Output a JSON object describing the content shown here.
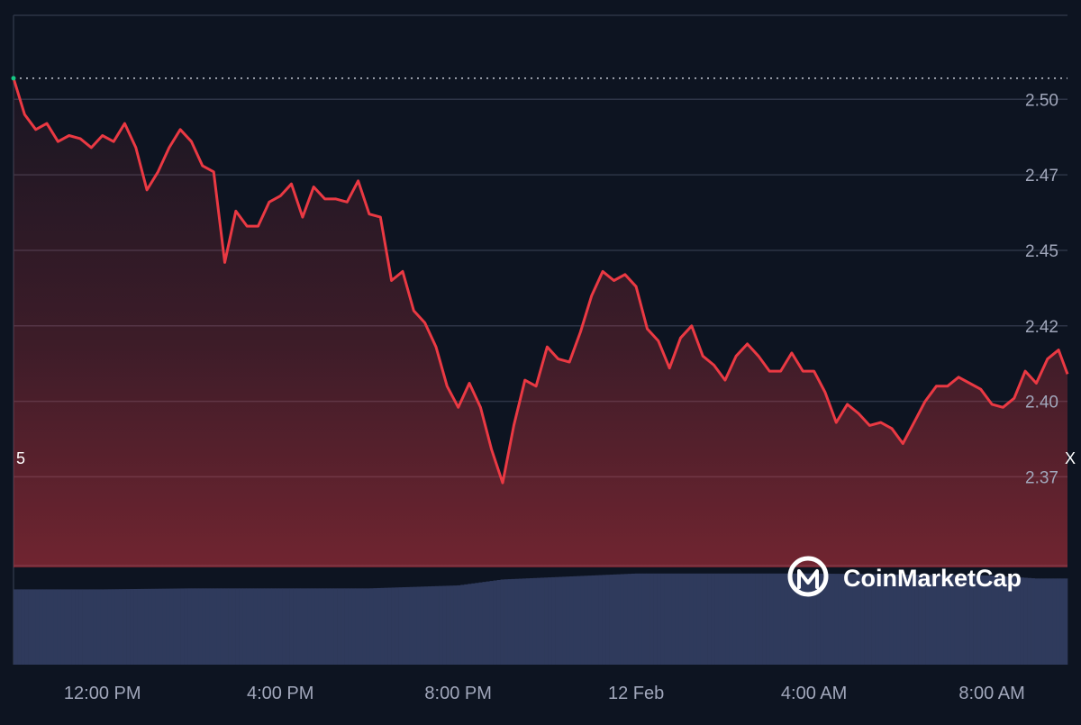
{
  "chart_data": {
    "type": "area",
    "title": "",
    "xlabel": "",
    "ylabel": "",
    "ylim": [
      2.345,
      2.515
    ],
    "y_ticks": [
      "2.50",
      "2.47",
      "2.45",
      "2.42",
      "2.40",
      "2.37"
    ],
    "y_tick_values": [
      2.5,
      2.475,
      2.45,
      2.425,
      2.4,
      2.375
    ],
    "x_ticks": [
      "12:00 PM",
      "4:00 PM",
      "8:00 PM",
      "12 Feb",
      "4:00 AM",
      "8:00 AM"
    ],
    "x_tick_hours": [
      12,
      16,
      20,
      24,
      28,
      32
    ],
    "x_range_hours": [
      10.0,
      33.7
    ],
    "reference_price": 2.507,
    "line_color": "#ea3943",
    "reference_color": "#c8ccd6",
    "volume_color": "#2f3a5c",
    "grid": true,
    "series": [
      {
        "x": [
          10.0,
          10.25,
          10.5,
          10.75,
          11.0,
          11.25,
          11.5,
          11.75,
          12.0,
          12.25,
          12.5,
          12.75,
          13.0,
          13.25,
          13.5,
          13.75,
          14.0,
          14.25,
          14.5,
          14.75,
          15.0,
          15.25,
          15.5,
          15.75,
          16.0,
          16.25,
          16.5,
          16.75,
          17.0,
          17.25,
          17.5,
          17.75,
          18.0,
          18.25,
          18.5,
          18.75,
          19.0,
          19.25,
          19.5,
          19.75,
          20.0,
          20.25,
          20.5,
          20.75,
          21.0,
          21.25,
          21.5,
          21.75,
          22.0,
          22.25,
          22.5,
          22.75,
          23.0,
          23.25,
          23.5,
          23.75,
          24.0,
          24.25,
          24.5,
          24.75,
          25.0,
          25.25,
          25.5,
          25.75,
          26.0,
          26.25,
          26.5,
          26.75,
          27.0,
          27.25,
          27.5,
          27.75,
          28.0,
          28.25,
          28.5,
          28.75,
          29.0,
          29.25,
          29.5,
          29.75,
          30.0,
          30.25,
          30.5,
          30.75,
          31.0,
          31.25,
          31.5,
          31.75,
          32.0,
          32.25,
          32.5,
          32.75,
          33.0,
          33.25,
          33.5,
          33.7
        ],
        "y": [
          2.507,
          2.495,
          2.49,
          2.492,
          2.486,
          2.488,
          2.487,
          2.484,
          2.488,
          2.486,
          2.492,
          2.484,
          2.47,
          2.476,
          2.484,
          2.49,
          2.486,
          2.478,
          2.476,
          2.446,
          2.463,
          2.458,
          2.458,
          2.466,
          2.468,
          2.472,
          2.461,
          2.471,
          2.467,
          2.467,
          2.466,
          2.473,
          2.462,
          2.461,
          2.44,
          2.443,
          2.43,
          2.426,
          2.418,
          2.405,
          2.398,
          2.406,
          2.398,
          2.384,
          2.373,
          2.392,
          2.407,
          2.405,
          2.418,
          2.414,
          2.413,
          2.423,
          2.435,
          2.443,
          2.44,
          2.442,
          2.438,
          2.424,
          2.42,
          2.411,
          2.421,
          2.425,
          2.415,
          2.412,
          2.407,
          2.415,
          2.419,
          2.415,
          2.41,
          2.41,
          2.416,
          2.41,
          2.41,
          2.403,
          2.393,
          2.399,
          2.396,
          2.392,
          2.393,
          2.391,
          2.386,
          2.393,
          2.4,
          2.405,
          2.405,
          2.408,
          2.406,
          2.404,
          2.399,
          2.398,
          2.401,
          2.41,
          2.406,
          2.414,
          2.417,
          2.409
        ]
      }
    ],
    "volume": {
      "x": [
        10.0,
        12.0,
        14.0,
        16.0,
        18.0,
        20.0,
        21.0,
        22.0,
        23.0,
        24.0,
        26.0,
        28.0,
        30.0,
        32.0,
        33.0,
        33.7
      ],
      "y": [
        0.76,
        0.76,
        0.77,
        0.77,
        0.77,
        0.8,
        0.86,
        0.88,
        0.9,
        0.92,
        0.92,
        0.92,
        0.91,
        0.9,
        0.87,
        0.87
      ]
    }
  },
  "edge_labels": {
    "left": "5",
    "right": "X"
  },
  "brand": {
    "name": "CoinMarketCap",
    "icon": "coinmarketcap-logo-icon"
  }
}
